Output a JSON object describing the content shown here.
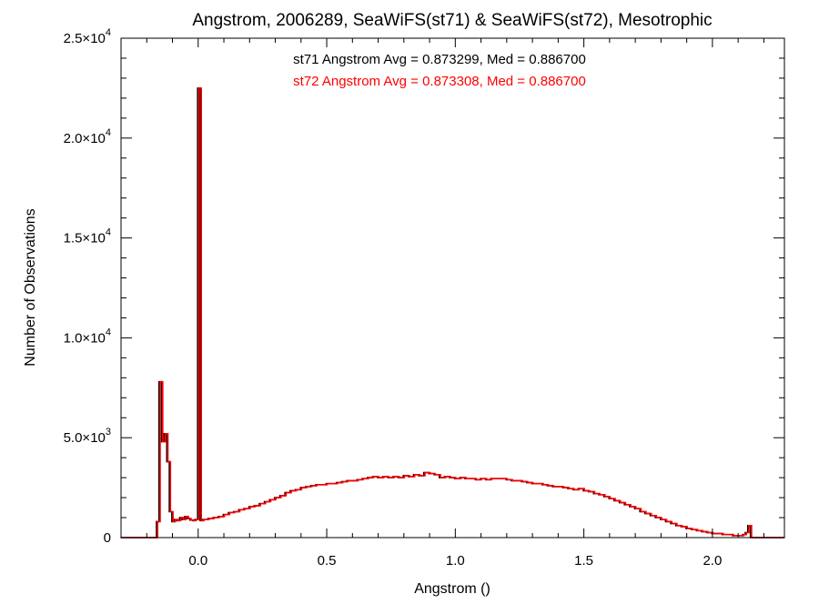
{
  "chart_data": {
    "type": "line",
    "title": "Angstrom, 2006289, SeaWiFS(st71) & SeaWiFS(st72), Mesotrophic",
    "xlabel": "Angstrom ()",
    "ylabel": "Number of Observations",
    "xlim": [
      -0.3,
      2.28
    ],
    "ylim": [
      0,
      25000
    ],
    "x_ticks": [
      {
        "value": 0.0,
        "label": "0.0"
      },
      {
        "value": 0.5,
        "label": "0.5"
      },
      {
        "value": 1.0,
        "label": "1.0"
      },
      {
        "value": 1.5,
        "label": "1.5"
      },
      {
        "value": 2.0,
        "label": "2.0"
      }
    ],
    "y_ticks": [
      {
        "value": 0,
        "mantissa": "0",
        "exponent": ""
      },
      {
        "value": 5000,
        "mantissa": "5.0×10",
        "exponent": "3"
      },
      {
        "value": 10000,
        "mantissa": "1.0×10",
        "exponent": "4"
      },
      {
        "value": 15000,
        "mantissa": "1.5×10",
        "exponent": "4"
      },
      {
        "value": 20000,
        "mantissa": "2.0×10",
        "exponent": "4"
      },
      {
        "value": 25000,
        "mantissa": "2.5×10",
        "exponent": "4"
      }
    ],
    "annotations": [
      {
        "text": "st71 Angstrom Avg = 0.873299, Med = 0.886700",
        "color": "#000000"
      },
      {
        "text": "st72 Angstrom Avg = 0.873308, Med = 0.886700",
        "color": "#ff0000"
      }
    ],
    "series": [
      {
        "color": "#000000",
        "points": [
          [
            -0.3,
            0
          ],
          [
            -0.17,
            0
          ],
          [
            -0.16,
            800
          ],
          [
            -0.15,
            7800
          ],
          [
            -0.14,
            4800
          ],
          [
            -0.13,
            5200
          ],
          [
            -0.12,
            3800
          ],
          [
            -0.11,
            1300
          ],
          [
            -0.1,
            800
          ],
          [
            -0.09,
            900
          ],
          [
            -0.08,
            850
          ],
          [
            -0.07,
            1000
          ],
          [
            -0.06,
            900
          ],
          [
            -0.05,
            1050
          ],
          [
            -0.04,
            950
          ],
          [
            -0.03,
            880
          ],
          [
            -0.02,
            850
          ],
          [
            -0.01,
            900
          ],
          [
            0.0,
            22500
          ],
          [
            0.01,
            850
          ],
          [
            0.02,
            900
          ],
          [
            0.04,
            950
          ],
          [
            0.06,
            1000
          ],
          [
            0.08,
            1050
          ],
          [
            0.1,
            1150
          ],
          [
            0.12,
            1250
          ],
          [
            0.14,
            1300
          ],
          [
            0.16,
            1400
          ],
          [
            0.18,
            1450
          ],
          [
            0.2,
            1550
          ],
          [
            0.22,
            1600
          ],
          [
            0.24,
            1700
          ],
          [
            0.26,
            1800
          ],
          [
            0.28,
            1900
          ],
          [
            0.3,
            2000
          ],
          [
            0.32,
            2100
          ],
          [
            0.34,
            2250
          ],
          [
            0.36,
            2350
          ],
          [
            0.38,
            2400
          ],
          [
            0.4,
            2500
          ],
          [
            0.42,
            2550
          ],
          [
            0.44,
            2600
          ],
          [
            0.46,
            2650
          ],
          [
            0.48,
            2650
          ],
          [
            0.5,
            2700
          ],
          [
            0.52,
            2700
          ],
          [
            0.54,
            2750
          ],
          [
            0.56,
            2800
          ],
          [
            0.58,
            2850
          ],
          [
            0.6,
            2850
          ],
          [
            0.62,
            2900
          ],
          [
            0.64,
            2950
          ],
          [
            0.66,
            3000
          ],
          [
            0.68,
            3050
          ],
          [
            0.7,
            3000
          ],
          [
            0.72,
            3050
          ],
          [
            0.74,
            3000
          ],
          [
            0.76,
            3050
          ],
          [
            0.78,
            3000
          ],
          [
            0.8,
            3100
          ],
          [
            0.82,
            3050
          ],
          [
            0.84,
            3150
          ],
          [
            0.86,
            3100
          ],
          [
            0.88,
            3250
          ],
          [
            0.9,
            3200
          ],
          [
            0.92,
            3150
          ],
          [
            0.94,
            3000
          ],
          [
            0.96,
            3050
          ],
          [
            0.98,
            3000
          ],
          [
            1.0,
            2950
          ],
          [
            1.02,
            3000
          ],
          [
            1.04,
            2950
          ],
          [
            1.06,
            2950
          ],
          [
            1.08,
            2900
          ],
          [
            1.1,
            2950
          ],
          [
            1.12,
            2900
          ],
          [
            1.14,
            2950
          ],
          [
            1.16,
            2950
          ],
          [
            1.18,
            2950
          ],
          [
            1.2,
            2900
          ],
          [
            1.22,
            2850
          ],
          [
            1.24,
            2850
          ],
          [
            1.26,
            2800
          ],
          [
            1.28,
            2750
          ],
          [
            1.3,
            2700
          ],
          [
            1.32,
            2700
          ],
          [
            1.34,
            2650
          ],
          [
            1.36,
            2600
          ],
          [
            1.38,
            2550
          ],
          [
            1.4,
            2550
          ],
          [
            1.42,
            2500
          ],
          [
            1.44,
            2450
          ],
          [
            1.46,
            2400
          ],
          [
            1.48,
            2450
          ],
          [
            1.5,
            2350
          ],
          [
            1.52,
            2300
          ],
          [
            1.54,
            2200
          ],
          [
            1.56,
            2150
          ],
          [
            1.58,
            2050
          ],
          [
            1.6,
            1950
          ],
          [
            1.62,
            1850
          ],
          [
            1.64,
            1750
          ],
          [
            1.66,
            1650
          ],
          [
            1.68,
            1550
          ],
          [
            1.7,
            1450
          ],
          [
            1.72,
            1300
          ],
          [
            1.74,
            1200
          ],
          [
            1.76,
            1100
          ],
          [
            1.78,
            1000
          ],
          [
            1.8,
            900
          ],
          [
            1.82,
            800
          ],
          [
            1.84,
            700
          ],
          [
            1.86,
            600
          ],
          [
            1.88,
            550
          ],
          [
            1.9,
            450
          ],
          [
            1.92,
            400
          ],
          [
            1.94,
            350
          ],
          [
            1.96,
            300
          ],
          [
            1.98,
            250
          ],
          [
            2.0,
            200
          ],
          [
            2.02,
            200
          ],
          [
            2.04,
            150
          ],
          [
            2.06,
            150
          ],
          [
            2.08,
            100
          ],
          [
            2.1,
            100
          ],
          [
            2.12,
            150
          ],
          [
            2.13,
            250
          ],
          [
            2.14,
            600
          ],
          [
            2.15,
            0
          ],
          [
            2.28,
            0
          ]
        ]
      },
      {
        "color": "#ff0000",
        "points": [
          [
            -0.3,
            0
          ],
          [
            -0.17,
            0
          ],
          [
            -0.16,
            800
          ],
          [
            -0.15,
            7800
          ],
          [
            -0.14,
            4800
          ],
          [
            -0.13,
            5200
          ],
          [
            -0.12,
            3800
          ],
          [
            -0.11,
            1300
          ],
          [
            -0.1,
            800
          ],
          [
            -0.09,
            900
          ],
          [
            -0.08,
            850
          ],
          [
            -0.07,
            1000
          ],
          [
            -0.06,
            900
          ],
          [
            -0.05,
            1050
          ],
          [
            -0.04,
            950
          ],
          [
            -0.03,
            880
          ],
          [
            -0.02,
            850
          ],
          [
            -0.01,
            900
          ],
          [
            0.0,
            22500
          ],
          [
            0.01,
            850
          ],
          [
            0.02,
            900
          ],
          [
            0.04,
            950
          ],
          [
            0.06,
            1000
          ],
          [
            0.08,
            1050
          ],
          [
            0.1,
            1150
          ],
          [
            0.12,
            1250
          ],
          [
            0.14,
            1300
          ],
          [
            0.16,
            1400
          ],
          [
            0.18,
            1450
          ],
          [
            0.2,
            1550
          ],
          [
            0.22,
            1600
          ],
          [
            0.24,
            1700
          ],
          [
            0.26,
            1800
          ],
          [
            0.28,
            1900
          ],
          [
            0.3,
            2000
          ],
          [
            0.32,
            2100
          ],
          [
            0.34,
            2250
          ],
          [
            0.36,
            2350
          ],
          [
            0.38,
            2400
          ],
          [
            0.4,
            2500
          ],
          [
            0.42,
            2550
          ],
          [
            0.44,
            2600
          ],
          [
            0.46,
            2650
          ],
          [
            0.48,
            2650
          ],
          [
            0.5,
            2700
          ],
          [
            0.52,
            2700
          ],
          [
            0.54,
            2750
          ],
          [
            0.56,
            2800
          ],
          [
            0.58,
            2850
          ],
          [
            0.6,
            2850
          ],
          [
            0.62,
            2900
          ],
          [
            0.64,
            2950
          ],
          [
            0.66,
            3000
          ],
          [
            0.68,
            3050
          ],
          [
            0.7,
            3000
          ],
          [
            0.72,
            3050
          ],
          [
            0.74,
            3000
          ],
          [
            0.76,
            3050
          ],
          [
            0.78,
            3000
          ],
          [
            0.8,
            3100
          ],
          [
            0.82,
            3050
          ],
          [
            0.84,
            3150
          ],
          [
            0.86,
            3100
          ],
          [
            0.88,
            3250
          ],
          [
            0.9,
            3200
          ],
          [
            0.92,
            3150
          ],
          [
            0.94,
            3000
          ],
          [
            0.96,
            3050
          ],
          [
            0.98,
            3000
          ],
          [
            1.0,
            2950
          ],
          [
            1.02,
            3000
          ],
          [
            1.04,
            2950
          ],
          [
            1.06,
            2950
          ],
          [
            1.08,
            2900
          ],
          [
            1.1,
            2950
          ],
          [
            1.12,
            2900
          ],
          [
            1.14,
            2950
          ],
          [
            1.16,
            2950
          ],
          [
            1.18,
            2950
          ],
          [
            1.2,
            2900
          ],
          [
            1.22,
            2850
          ],
          [
            1.24,
            2850
          ],
          [
            1.26,
            2800
          ],
          [
            1.28,
            2750
          ],
          [
            1.3,
            2700
          ],
          [
            1.32,
            2700
          ],
          [
            1.34,
            2650
          ],
          [
            1.36,
            2600
          ],
          [
            1.38,
            2550
          ],
          [
            1.4,
            2550
          ],
          [
            1.42,
            2500
          ],
          [
            1.44,
            2450
          ],
          [
            1.46,
            2400
          ],
          [
            1.48,
            2450
          ],
          [
            1.5,
            2350
          ],
          [
            1.52,
            2300
          ],
          [
            1.54,
            2200
          ],
          [
            1.56,
            2150
          ],
          [
            1.58,
            2050
          ],
          [
            1.6,
            1950
          ],
          [
            1.62,
            1850
          ],
          [
            1.64,
            1750
          ],
          [
            1.66,
            1650
          ],
          [
            1.68,
            1550
          ],
          [
            1.7,
            1450
          ],
          [
            1.72,
            1300
          ],
          [
            1.74,
            1200
          ],
          [
            1.76,
            1100
          ],
          [
            1.78,
            1000
          ],
          [
            1.8,
            900
          ],
          [
            1.82,
            800
          ],
          [
            1.84,
            700
          ],
          [
            1.86,
            600
          ],
          [
            1.88,
            550
          ],
          [
            1.9,
            450
          ],
          [
            1.92,
            400
          ],
          [
            1.94,
            350
          ],
          [
            1.96,
            300
          ],
          [
            1.98,
            250
          ],
          [
            2.0,
            200
          ],
          [
            2.02,
            200
          ],
          [
            2.04,
            150
          ],
          [
            2.06,
            150
          ],
          [
            2.08,
            100
          ],
          [
            2.1,
            100
          ],
          [
            2.12,
            150
          ],
          [
            2.13,
            250
          ],
          [
            2.14,
            600
          ],
          [
            2.15,
            0
          ],
          [
            2.28,
            0
          ]
        ]
      }
    ]
  }
}
